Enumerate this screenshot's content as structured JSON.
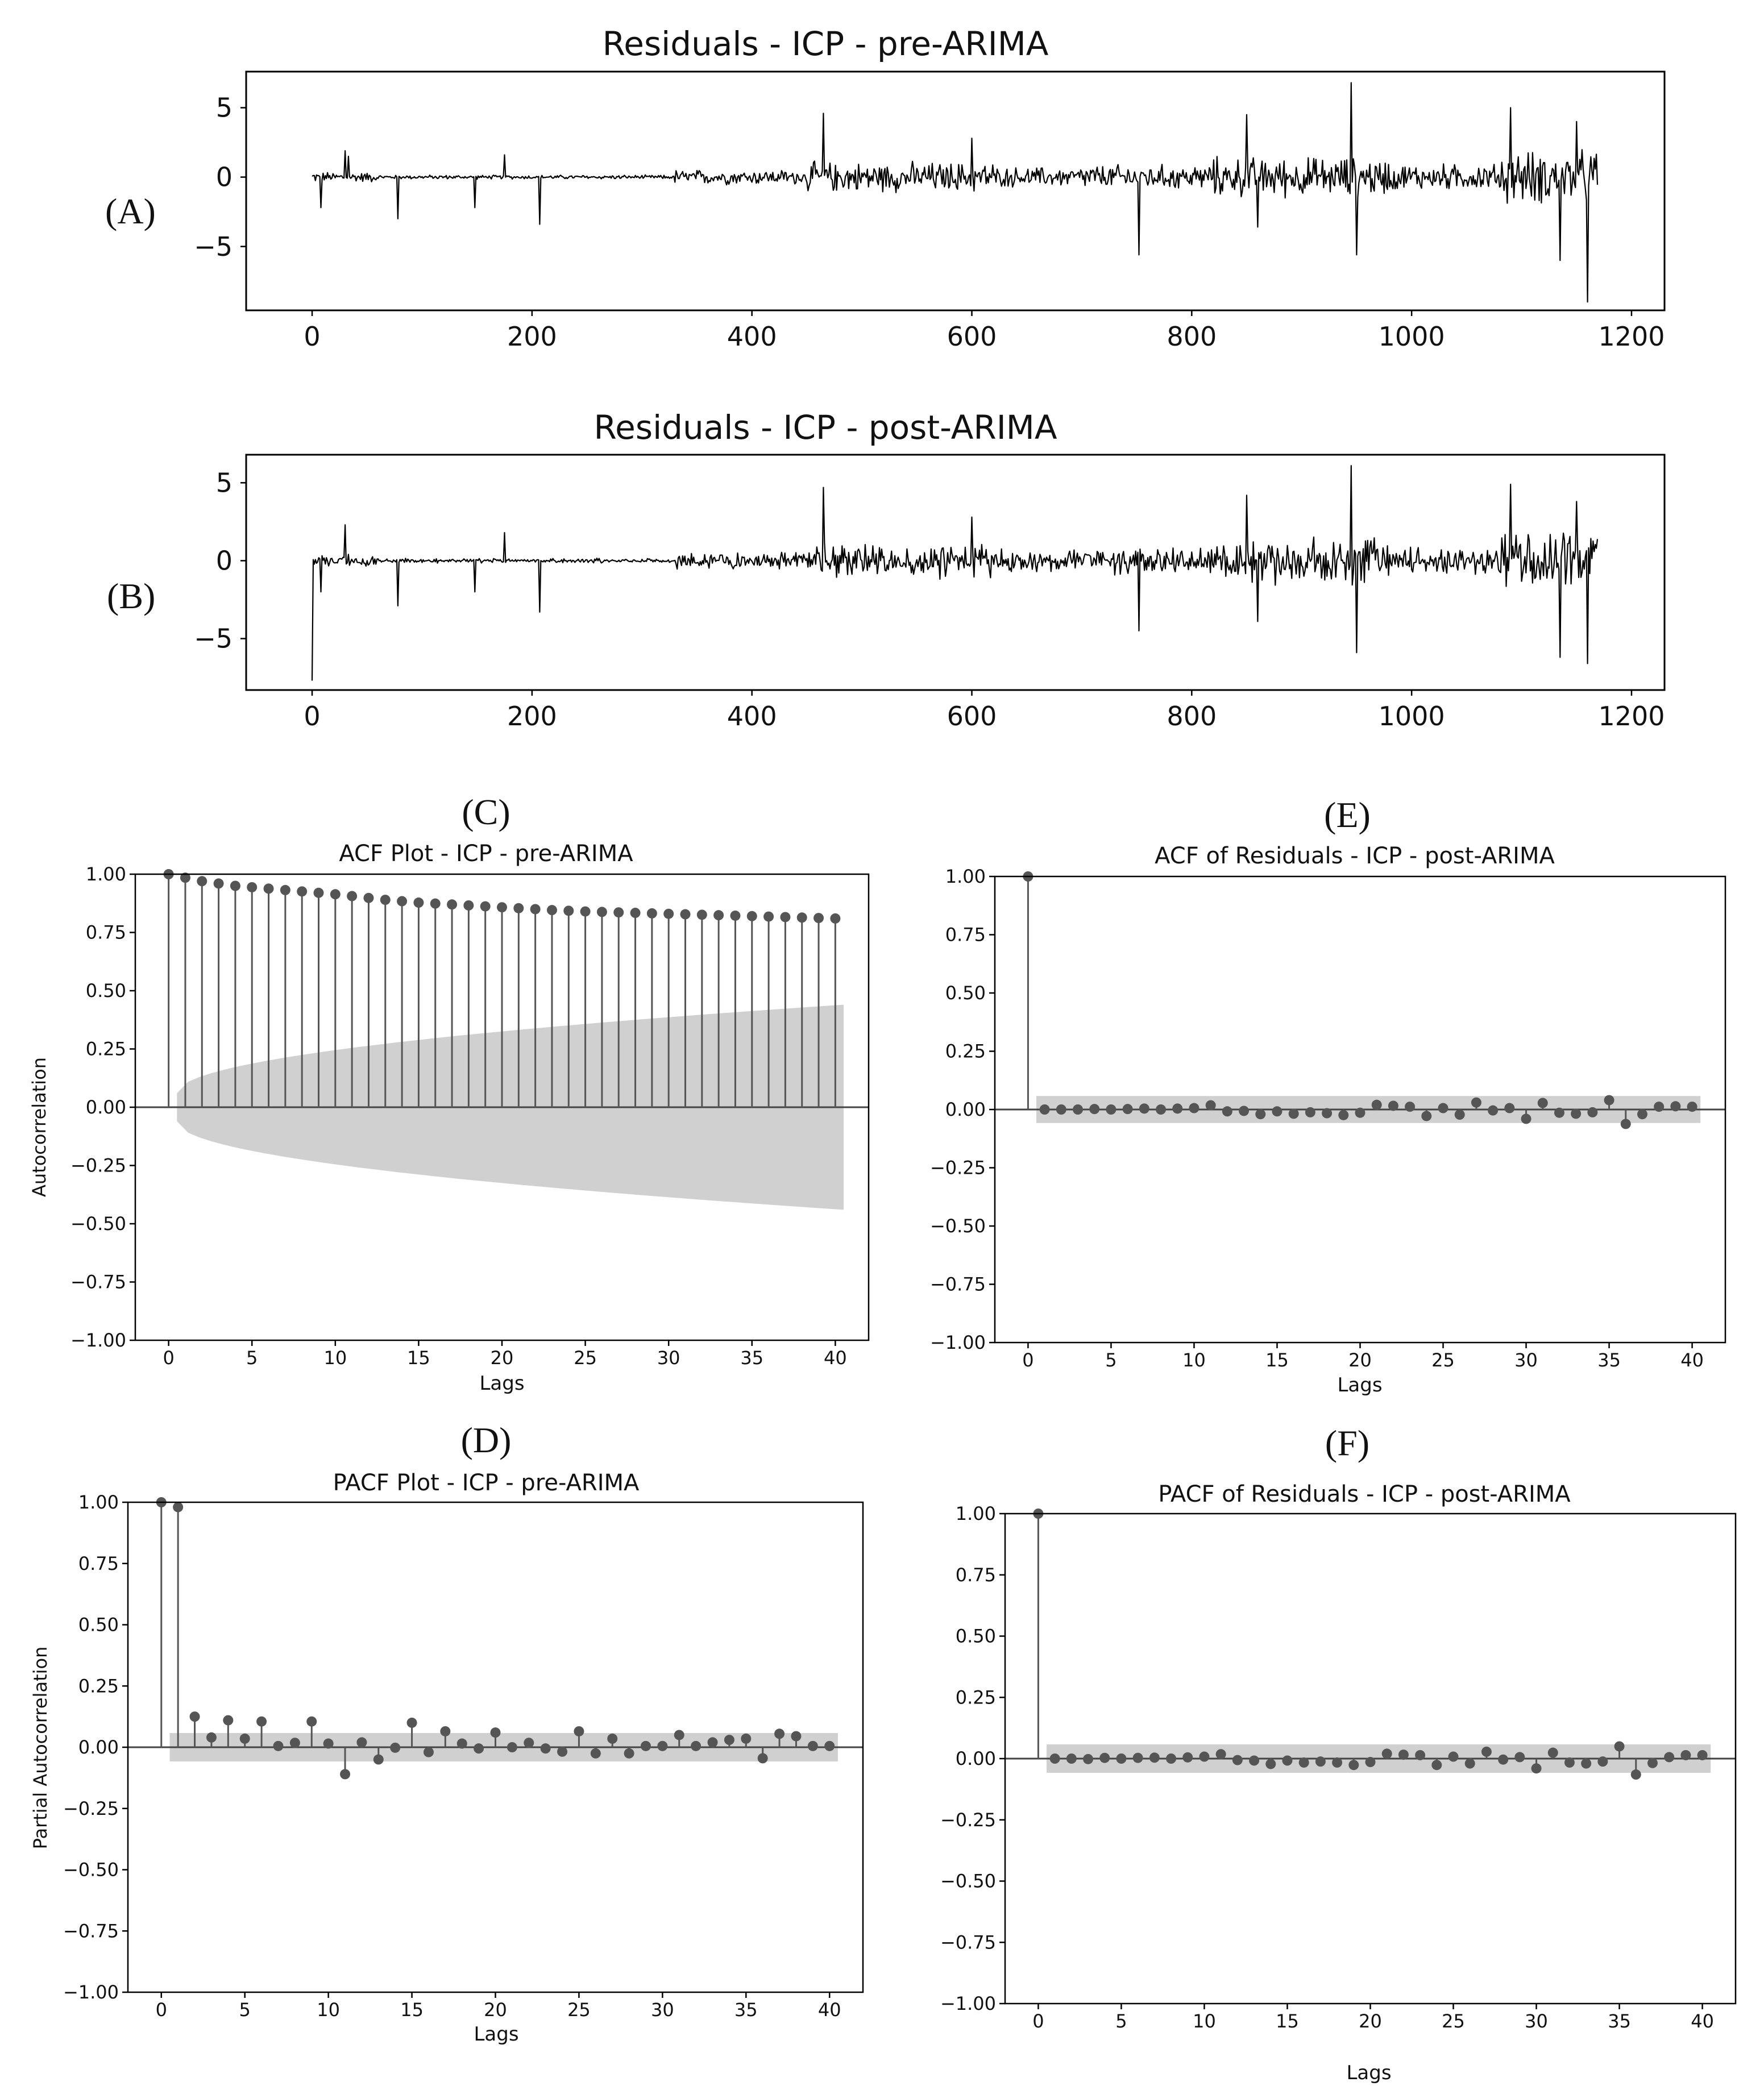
{
  "panel_labels": [
    "(A)",
    "(B)",
    "(C)",
    "(E)",
    "(D)",
    "(F)"
  ],
  "colors": {
    "series": "#000000",
    "stem": "#555555",
    "confidence": "#d0d0d0"
  },
  "chart_data": [
    {
      "id": "A",
      "type": "line",
      "title": "Residuals - ICP - pre-ARIMA",
      "xlabel": "",
      "ylabel": "",
      "xlim": [
        -60,
        1230
      ],
      "ylim": [
        -9.6,
        7.6
      ],
      "xticks": [
        0,
        200,
        400,
        600,
        800,
        1000,
        1200
      ],
      "yticks": [
        5,
        0,
        -5
      ],
      "n": 1170,
      "segments": [
        {
          "x0": 0,
          "x1": 60,
          "amp": 0.3
        },
        {
          "x0": 60,
          "x1": 330,
          "amp": 0.12
        },
        {
          "x0": 330,
          "x1": 450,
          "amp": 0.45
        },
        {
          "x0": 450,
          "x1": 620,
          "amp": 0.9
        },
        {
          "x0": 620,
          "x1": 700,
          "amp": 0.6
        },
        {
          "x0": 700,
          "x1": 820,
          "amp": 0.75
        },
        {
          "x0": 820,
          "x1": 980,
          "amp": 1.2
        },
        {
          "x0": 980,
          "x1": 1080,
          "amp": 0.8
        },
        {
          "x0": 1080,
          "x1": 1170,
          "amp": 1.6
        }
      ],
      "spikes": [
        {
          "x": 8,
          "y": -2.2
        },
        {
          "x": 30,
          "y": 1.9
        },
        {
          "x": 33,
          "y": 1.5
        },
        {
          "x": 78,
          "y": -3.0
        },
        {
          "x": 148,
          "y": -2.2
        },
        {
          "x": 175,
          "y": 1.6
        },
        {
          "x": 207,
          "y": -3.4
        },
        {
          "x": 465,
          "y": 4.6
        },
        {
          "x": 600,
          "y": 2.8
        },
        {
          "x": 752,
          "y": -5.6
        },
        {
          "x": 850,
          "y": 4.5
        },
        {
          "x": 860,
          "y": -3.6
        },
        {
          "x": 945,
          "y": 6.8
        },
        {
          "x": 950,
          "y": -5.6
        },
        {
          "x": 1090,
          "y": 5.0
        },
        {
          "x": 1135,
          "y": -6.0
        },
        {
          "x": 1150,
          "y": 4.0
        },
        {
          "x": 1160,
          "y": -9.0
        }
      ]
    },
    {
      "id": "B",
      "type": "line",
      "title": "Residuals - ICP - post-ARIMA",
      "xlabel": "",
      "ylabel": "",
      "xlim": [
        -60,
        1230
      ],
      "ylim": [
        -8.3,
        6.8
      ],
      "xticks": [
        0,
        200,
        400,
        600,
        800,
        1000,
        1200
      ],
      "yticks": [
        5,
        0,
        -5
      ],
      "n": 1170,
      "segments": [
        {
          "x0": 0,
          "x1": 60,
          "amp": 0.3
        },
        {
          "x0": 60,
          "x1": 330,
          "amp": 0.12
        },
        {
          "x0": 330,
          "x1": 450,
          "amp": 0.45
        },
        {
          "x0": 450,
          "x1": 620,
          "amp": 0.9
        },
        {
          "x0": 620,
          "x1": 700,
          "amp": 0.6
        },
        {
          "x0": 700,
          "x1": 820,
          "amp": 0.75
        },
        {
          "x0": 820,
          "x1": 980,
          "amp": 1.2
        },
        {
          "x0": 980,
          "x1": 1080,
          "amp": 0.8
        },
        {
          "x0": 1080,
          "x1": 1170,
          "amp": 1.6
        }
      ],
      "spikes": [
        {
          "x": 0,
          "y": -7.7
        },
        {
          "x": 8,
          "y": -2.0
        },
        {
          "x": 30,
          "y": 2.3
        },
        {
          "x": 78,
          "y": -2.9
        },
        {
          "x": 148,
          "y": -2.0
        },
        {
          "x": 175,
          "y": 1.8
        },
        {
          "x": 207,
          "y": -3.3
        },
        {
          "x": 465,
          "y": 4.7
        },
        {
          "x": 600,
          "y": 2.8
        },
        {
          "x": 752,
          "y": -4.5
        },
        {
          "x": 850,
          "y": 4.2
        },
        {
          "x": 860,
          "y": -3.9
        },
        {
          "x": 945,
          "y": 6.1
        },
        {
          "x": 950,
          "y": -5.9
        },
        {
          "x": 1090,
          "y": 4.9
        },
        {
          "x": 1135,
          "y": -6.2
        },
        {
          "x": 1150,
          "y": 3.8
        },
        {
          "x": 1160,
          "y": -6.6
        }
      ]
    },
    {
      "id": "C",
      "type": "stem",
      "title": "ACF Plot - ICP - pre-ARIMA",
      "xlabel": "Lags",
      "ylabel": "Autocorrelation",
      "xlim": [
        -2,
        42
      ],
      "ylim": [
        -1,
        1
      ],
      "xticks": [
        0,
        5,
        10,
        15,
        20,
        25,
        30,
        35,
        40
      ],
      "yticks": [
        1.0,
        0.75,
        0.5,
        0.25,
        0.0,
        -0.25,
        -0.5,
        -0.75,
        -1.0
      ],
      "ytick_labels": [
        "1.00",
        "0.75",
        "0.50",
        "0.25",
        "0.00",
        "−0.25",
        "−0.50",
        "−0.75",
        "−1.00"
      ],
      "values": [
        1.0,
        0.985,
        0.97,
        0.96,
        0.95,
        0.944,
        0.938,
        0.932,
        0.926,
        0.92,
        0.914,
        0.906,
        0.898,
        0.89,
        0.884,
        0.878,
        0.874,
        0.87,
        0.866,
        0.862,
        0.858,
        0.854,
        0.85,
        0.846,
        0.843,
        0.84,
        0.838,
        0.836,
        0.834,
        0.832,
        0.83,
        0.828,
        0.826,
        0.824,
        0.822,
        0.82,
        0.818,
        0.816,
        0.814,
        0.812,
        0.81
      ],
      "confidence": {
        "from_lag": 0.5,
        "to_lag": 40.5,
        "start": 0.06,
        "end": 0.44,
        "growth": "sqrt"
      }
    },
    {
      "id": "E",
      "type": "stem",
      "title": "ACF of Residuals - ICP - post-ARIMA",
      "xlabel": "Lags",
      "ylabel": "",
      "xlim": [
        -2,
        42
      ],
      "ylim": [
        -1,
        1
      ],
      "xticks": [
        0,
        5,
        10,
        15,
        20,
        25,
        30,
        35,
        40
      ],
      "yticks": [
        1.0,
        0.75,
        0.5,
        0.25,
        0.0,
        -0.25,
        -0.5,
        -0.75,
        -1.0
      ],
      "ytick_labels": [
        "1.00",
        "0.75",
        "0.50",
        "0.25",
        "0.00",
        "−0.25",
        "−0.50",
        "−0.75",
        "−1.00"
      ],
      "values": [
        1.0,
        0.0,
        0.0,
        0.0,
        0.002,
        0.0,
        0.002,
        0.004,
        0.0,
        0.004,
        0.006,
        0.018,
        -0.008,
        -0.006,
        -0.02,
        -0.008,
        -0.018,
        -0.012,
        -0.016,
        -0.024,
        -0.014,
        0.02,
        0.016,
        0.012,
        -0.028,
        0.006,
        -0.022,
        0.03,
        -0.004,
        0.006,
        -0.04,
        0.028,
        -0.014,
        -0.018,
        -0.012,
        0.04,
        -0.062,
        -0.02,
        0.012,
        0.014,
        0.012
      ],
      "confidence": {
        "from_lag": 0.5,
        "to_lag": 40.5,
        "start": 0.058,
        "end": 0.058,
        "growth": "flat"
      }
    },
    {
      "id": "D",
      "type": "stem",
      "title": "PACF Plot - ICP - pre-ARIMA",
      "xlabel": "Lags",
      "ylabel": "Partial Autocorrelation",
      "xlim": [
        -2,
        42
      ],
      "ylim": [
        -1,
        1
      ],
      "xticks": [
        0,
        5,
        10,
        15,
        20,
        25,
        30,
        35,
        40
      ],
      "yticks": [
        1.0,
        0.75,
        0.5,
        0.25,
        0.0,
        -0.25,
        -0.5,
        -0.75,
        -1.0
      ],
      "ytick_labels": [
        "1.00",
        "0.75",
        "0.50",
        "0.25",
        "0.00",
        "−0.25",
        "−0.50",
        "−0.75",
        "−1.00"
      ],
      "values": [
        1.0,
        0.98,
        0.125,
        0.04,
        0.11,
        0.035,
        0.105,
        0.005,
        0.018,
        0.105,
        0.015,
        -0.11,
        0.02,
        -0.05,
        -0.002,
        0.1,
        -0.02,
        0.065,
        0.015,
        -0.005,
        0.06,
        0.0,
        0.018,
        -0.005,
        -0.018,
        0.065,
        -0.025,
        0.035,
        -0.025,
        0.005,
        0.005,
        0.05,
        0.005,
        0.02,
        0.03,
        0.035,
        -0.045,
        0.055,
        0.045,
        0.005,
        0.005
      ],
      "confidence": {
        "from_lag": 0.5,
        "to_lag": 40.5,
        "start": 0.058,
        "end": 0.058,
        "growth": "flat"
      }
    },
    {
      "id": "F",
      "type": "stem",
      "title": "PACF of Residuals - ICP - post-ARIMA",
      "xlabel": "Lags",
      "ylabel": "",
      "xlim": [
        -2,
        42
      ],
      "ylim": [
        -1,
        1
      ],
      "xticks": [
        0,
        5,
        10,
        15,
        20,
        25,
        30,
        35,
        40
      ],
      "yticks": [
        1.0,
        0.75,
        0.5,
        0.25,
        0.0,
        -0.25,
        -0.5,
        -0.75,
        -1.0
      ],
      "ytick_labels": [
        "1.00",
        "0.75",
        "0.50",
        "0.25",
        "0.00",
        "−0.25",
        "−0.50",
        "−0.75",
        "−1.00"
      ],
      "values": [
        1.0,
        0.0,
        0.0,
        -0.002,
        0.003,
        0.0,
        0.003,
        0.004,
        0.0,
        0.005,
        0.008,
        0.018,
        -0.006,
        -0.008,
        -0.022,
        -0.008,
        -0.016,
        -0.012,
        -0.016,
        -0.026,
        -0.014,
        0.02,
        0.016,
        0.014,
        -0.026,
        0.008,
        -0.02,
        0.028,
        -0.004,
        0.006,
        -0.04,
        0.024,
        -0.016,
        -0.02,
        -0.012,
        0.05,
        -0.065,
        -0.018,
        0.006,
        0.014,
        0.014
      ],
      "confidence": {
        "from_lag": 0.5,
        "to_lag": 40.5,
        "start": 0.058,
        "end": 0.058,
        "growth": "flat"
      }
    }
  ]
}
